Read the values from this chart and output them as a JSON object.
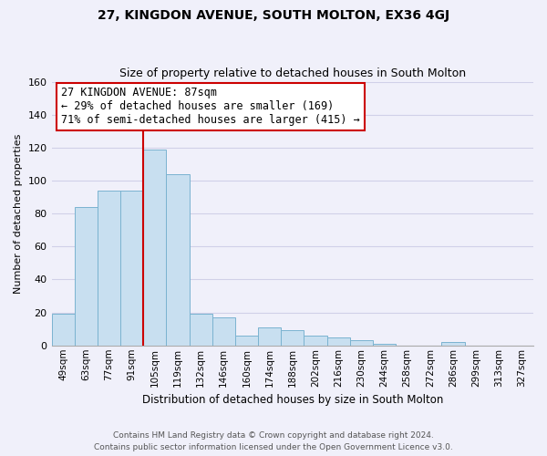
{
  "title": "27, KINGDON AVENUE, SOUTH MOLTON, EX36 4GJ",
  "subtitle": "Size of property relative to detached houses in South Molton",
  "xlabel": "Distribution of detached houses by size in South Molton",
  "ylabel": "Number of detached properties",
  "bar_labels": [
    "49sqm",
    "63sqm",
    "77sqm",
    "91sqm",
    "105sqm",
    "119sqm",
    "132sqm",
    "146sqm",
    "160sqm",
    "174sqm",
    "188sqm",
    "202sqm",
    "216sqm",
    "230sqm",
    "244sqm",
    "258sqm",
    "272sqm",
    "286sqm",
    "299sqm",
    "313sqm",
    "327sqm"
  ],
  "bar_heights": [
    19,
    84,
    94,
    94,
    119,
    104,
    19,
    17,
    6,
    11,
    9,
    6,
    5,
    3,
    1,
    0,
    0,
    2,
    0,
    0,
    0
  ],
  "bar_color": "#c8dff0",
  "bar_edge_color": "#7ab3d0",
  "vline_x": 3.5,
  "vline_color": "#cc0000",
  "annotation_title": "27 KINGDON AVENUE: 87sqm",
  "annotation_line1": "← 29% of detached houses are smaller (169)",
  "annotation_line2": "71% of semi-detached houses are larger (415) →",
  "annotation_box_color": "#ffffff",
  "annotation_box_edge": "#cc0000",
  "ylim": [
    0,
    160
  ],
  "yticks": [
    0,
    20,
    40,
    60,
    80,
    100,
    120,
    140,
    160
  ],
  "footnote1": "Contains HM Land Registry data © Crown copyright and database right 2024.",
  "footnote2": "Contains public sector information licensed under the Open Government Licence v3.0.",
  "bg_color": "#f0f0fa"
}
